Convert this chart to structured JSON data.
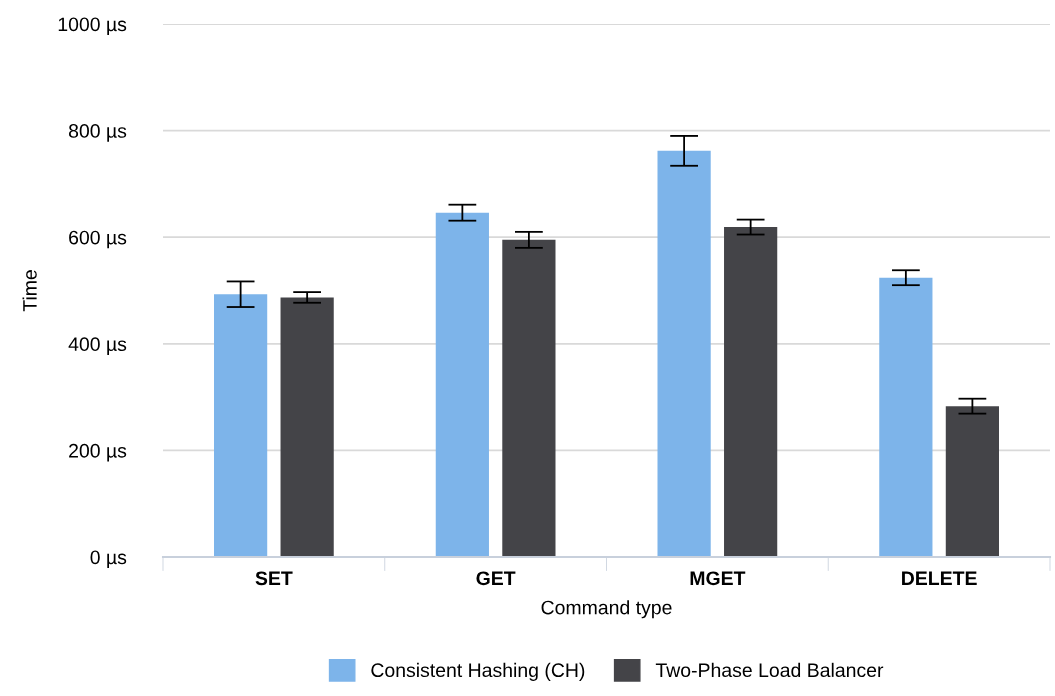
{
  "chart_data": {
    "type": "bar",
    "xlabel": "Command type",
    "ylabel": "Time",
    "categories": [
      "SET",
      "GET",
      "MGET",
      "DELETE"
    ],
    "series": [
      {
        "name": "Consistent Hashing (CH)",
        "color": "#7db4ea",
        "values": [
          493,
          646,
          762,
          524
        ],
        "errors": [
          24,
          15,
          28,
          14
        ]
      },
      {
        "name": "Two-Phase Load Balancer",
        "color": "#444448",
        "values": [
          487,
          595,
          619,
          283
        ],
        "errors": [
          10,
          15,
          14,
          14
        ]
      }
    ],
    "ylim": [
      0,
      1000
    ],
    "yticks": [
      {
        "value": 0,
        "label": "0 µs"
      },
      {
        "value": 200,
        "label": "200 µs"
      },
      {
        "value": 400,
        "label": "400 µs"
      },
      {
        "value": 600,
        "label": "600 µs"
      },
      {
        "value": 800,
        "label": "800 µs"
      },
      {
        "value": 1000,
        "label": "1000 µs"
      }
    ],
    "grid": "y",
    "legend": "bottom"
  }
}
